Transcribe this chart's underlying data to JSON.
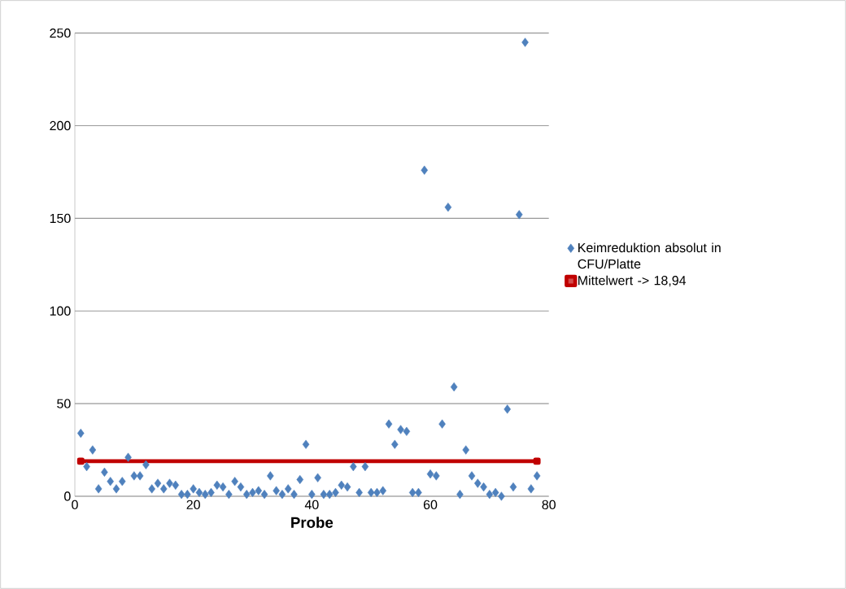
{
  "chart_data": {
    "type": "scatter",
    "xlabel": "Probe",
    "xlim": [
      0,
      80
    ],
    "xticks": [
      0,
      20,
      40,
      60,
      80
    ],
    "ylim": [
      0,
      250
    ],
    "yticks": [
      0,
      50,
      100,
      150,
      200,
      250
    ],
    "grid": "y",
    "legend": "right",
    "series": [
      {
        "name": "Keimreduktion absolut in CFU/Platte",
        "marker": "diamond",
        "color": "#4f81bd",
        "x": [
          1,
          2,
          3,
          4,
          5,
          6,
          7,
          8,
          9,
          10,
          11,
          12,
          13,
          14,
          15,
          16,
          17,
          18,
          19,
          20,
          21,
          22,
          23,
          24,
          25,
          26,
          27,
          28,
          29,
          30,
          31,
          32,
          33,
          34,
          35,
          36,
          37,
          38,
          39,
          40,
          41,
          42,
          43,
          44,
          45,
          46,
          47,
          48,
          49,
          50,
          51,
          52,
          53,
          54,
          55,
          56,
          57,
          58,
          59,
          60,
          61,
          62,
          63,
          64,
          65,
          66,
          67,
          68,
          69,
          70,
          71,
          72,
          73,
          74,
          75,
          76,
          77,
          78
        ],
        "values": [
          34,
          16,
          25,
          4,
          13,
          8,
          4,
          8,
          21,
          11,
          11,
          17,
          4,
          7,
          4,
          7,
          6,
          1,
          1,
          4,
          2,
          1,
          2,
          6,
          5,
          1,
          8,
          5,
          1,
          2,
          3,
          1,
          11,
          3,
          1,
          4,
          1,
          9,
          28,
          1,
          10,
          1,
          1,
          2,
          6,
          5,
          16,
          2,
          16,
          2,
          2,
          3,
          39,
          28,
          36,
          35,
          2,
          2,
          176,
          12,
          11,
          39,
          156,
          59,
          1,
          25,
          11,
          7,
          5,
          1,
          2,
          0,
          47,
          5,
          152,
          245,
          4,
          11
        ]
      },
      {
        "name": "Mittelwert -> 18,94",
        "type": "line",
        "marker": "square",
        "color": "#c00000",
        "x": [
          1,
          78
        ],
        "values": [
          18.94,
          18.94
        ]
      }
    ]
  }
}
